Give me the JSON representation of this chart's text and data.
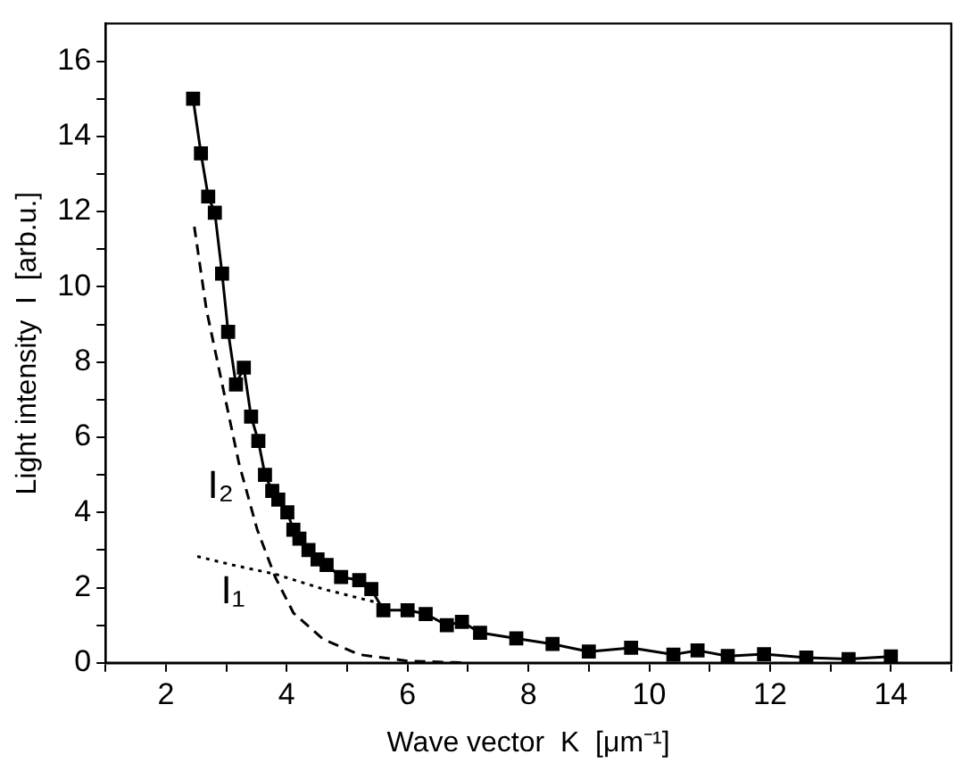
{
  "chart_data": {
    "type": "line",
    "xlabel": "Wave vector  K  [μm⁻¹]",
    "ylabel": "Light intensity  I  [arb.u.]",
    "xlim": [
      1,
      15
    ],
    "ylim": [
      0,
      17
    ],
    "xticks": [
      {
        "value": 1,
        "label": null
      },
      2,
      {
        "value": 3,
        "label": null
      },
      4,
      {
        "value": 5,
        "label": null
      },
      6,
      {
        "value": 7,
        "label": null
      },
      8,
      {
        "value": 9,
        "label": null
      },
      10,
      {
        "value": 11,
        "label": null
      },
      12,
      {
        "value": 13,
        "label": null
      },
      14,
      {
        "value": 15,
        "label": null
      }
    ],
    "yticks": [
      0,
      {
        "value": 1,
        "label": null
      },
      2,
      {
        "value": 3,
        "label": null
      },
      4,
      {
        "value": 5,
        "label": null
      },
      6,
      {
        "value": 7,
        "label": null
      },
      8,
      {
        "value": 9,
        "label": null
      },
      10,
      {
        "value": 11,
        "label": null
      },
      12,
      {
        "value": 13,
        "label": null
      },
      14,
      {
        "value": 15,
        "label": null
      },
      16
    ],
    "grid": false,
    "legend": false,
    "series": [
      {
        "color": "#000000",
        "marker": "square",
        "line_style": "solid",
        "x": [
          2.45,
          2.58,
          2.7,
          2.81,
          2.93,
          3.03,
          3.16,
          3.29,
          3.41,
          3.53,
          3.64,
          3.76,
          3.86,
          4.01,
          4.11,
          4.21,
          4.36,
          4.51,
          4.66,
          4.9,
          5.2,
          5.4,
          5.6,
          6.0,
          6.3,
          6.65,
          6.9,
          7.2,
          7.8,
          8.4,
          9.0,
          9.7,
          10.4,
          10.8,
          11.3,
          11.9,
          12.6,
          13.3,
          14.0
        ],
        "values": [
          15.0,
          13.55,
          12.4,
          11.97,
          10.35,
          8.8,
          7.4,
          7.85,
          6.55,
          5.9,
          5.0,
          4.57,
          4.34,
          4.0,
          3.54,
          3.3,
          3.0,
          2.75,
          2.6,
          2.28,
          2.2,
          1.96,
          1.4,
          1.4,
          1.3,
          1.0,
          1.09,
          0.8,
          0.65,
          0.5,
          0.3,
          0.4,
          0.22,
          0.33,
          0.18,
          0.23,
          0.14,
          0.1,
          0.17
        ]
      },
      {
        "color": "#000000",
        "marker": "none",
        "line_style": "dashed",
        "x": [
          2.47,
          2.67,
          2.92,
          3.21,
          3.51,
          3.81,
          4.11,
          4.61,
          5.2,
          6.0,
          7.0
        ],
        "values": [
          11.6,
          9.4,
          7.5,
          5.3,
          3.55,
          2.28,
          1.33,
          0.62,
          0.22,
          0.05,
          0
        ]
      },
      {
        "color": "#000000",
        "marker": "none",
        "line_style": "dotted",
        "x": [
          2.52,
          3.11,
          3.81,
          4.61,
          5.5
        ],
        "values": [
          2.83,
          2.6,
          2.36,
          1.96,
          1.6
        ]
      }
    ],
    "annotations": [
      {
        "text": "I₂",
        "x": 3.21,
        "y": 5.3
      },
      {
        "text": "I₁",
        "x": 3.4,
        "y": 2.5
      }
    ]
  }
}
